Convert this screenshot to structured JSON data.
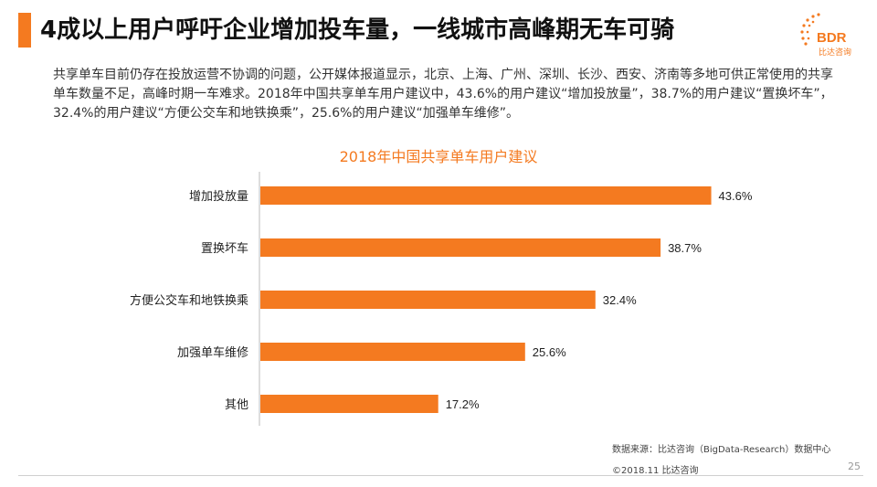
{
  "header": {
    "title": "4成以上用户呼吁企业增加投车量，一线城市高峰期无车可骑",
    "logo_text": "BDR",
    "logo_subtext": "比达咨询",
    "accent_color": "#f47a20"
  },
  "intro_text": "共享单车目前仍存在投放运营不协调的问题，公开媒体报道显示，北京、上海、广州、深圳、长沙、西安、济南等多地可供正常使用的共享单车数量不足，高峰时期一车难求。2018年中国共享单车用户建议中，43.6%的用户建议“增加投放量”，38.7%的用户建议“置换坏车”，32.4%的用户建议“方便公交车和地铁换乘”，25.6%的用户建议“加强单车维修”。",
  "chart_data": {
    "type": "bar",
    "orientation": "horizontal",
    "title": "2018年中国共享单车用户建议",
    "categories": [
      "增加投放量",
      "置换坏车",
      "方便公交车和地铁换乘",
      "加强单车维修",
      "其他"
    ],
    "values": [
      43.6,
      38.7,
      32.4,
      25.6,
      17.2
    ],
    "value_labels": [
      "43.6%",
      "38.7%",
      "32.4%",
      "25.6%",
      "17.2%"
    ],
    "unit": "%",
    "xlim": [
      0,
      50
    ],
    "grid": false,
    "legend": "none",
    "bar_color": "#f47a20"
  },
  "footer": {
    "source": "数据来源：比达咨询（BigData-Research）数据中心",
    "copyright": "©2018.11 比达咨询",
    "page_number": "25"
  }
}
